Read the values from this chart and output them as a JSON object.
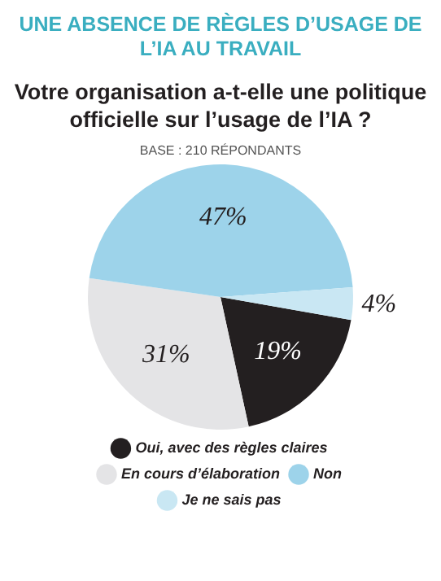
{
  "chart_data": {
    "type": "pie",
    "title": "UNE ABSENCE DE RÈGLES D’USAGE DE L’IA AU TRAVAIL",
    "subtitle": "Votre organisation a-t-elle une politique officielle  sur l’usage de l’IA ?",
    "annotations": [
      "BASE : 210 RÉPONDANTS"
    ],
    "categories": [
      "Oui, avec des règles claires",
      "En cours d’élaboration",
      "Non",
      "Je ne sais pas"
    ],
    "values": [
      19,
      31,
      47,
      4
    ],
    "colors": [
      "#231f20",
      "#e4e4e6",
      "#9dd3ea",
      "#c9e7f3"
    ],
    "value_labels": [
      "19%",
      "31%",
      "47%",
      "4%"
    ],
    "legend": "bottom"
  }
}
